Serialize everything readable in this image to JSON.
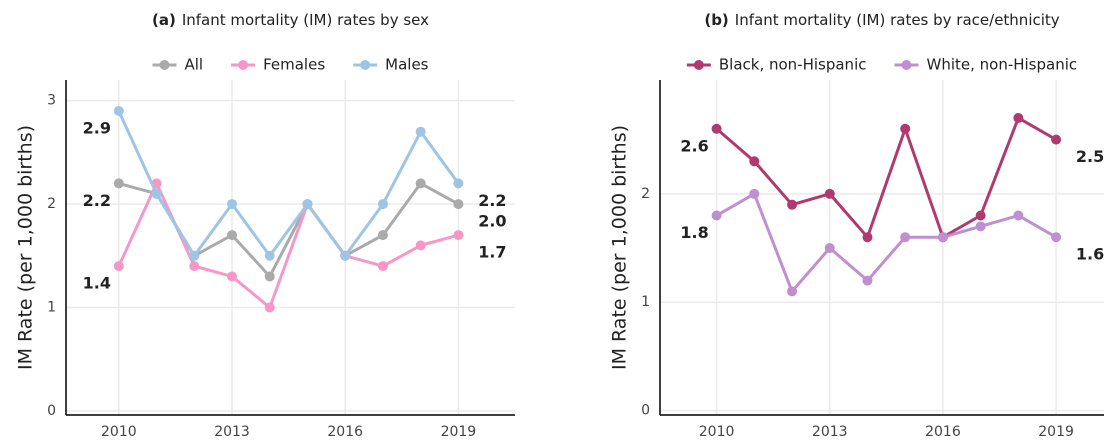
{
  "chart_data": [
    {
      "type": "line",
      "title_label": "(a)",
      "title": "Infant mortality (IM) rates by sex",
      "y_label": "IM Rate (per 1,000 births)",
      "x": [
        2010,
        2011,
        2012,
        2013,
        2014,
        2015,
        2016,
        2017,
        2018,
        2019
      ],
      "xlim": [
        2008.6,
        2020.5
      ],
      "xticks": [
        2010,
        2013,
        2016,
        2019
      ],
      "ylim": [
        -0.04,
        3.2
      ],
      "yticks": [
        0,
        1,
        2,
        3
      ],
      "grid": true,
      "series": [
        {
          "name": "All",
          "color": "#aaaaaa",
          "values": [
            2.2,
            2.1,
            1.5,
            1.7,
            1.3,
            2.0,
            1.5,
            1.7,
            2.2,
            2.0
          ],
          "value_labels": [
            "2.2",
            null,
            null,
            null,
            null,
            null,
            null,
            null,
            null,
            "2.0"
          ]
        },
        {
          "name": "Females",
          "color": "#f598c8",
          "values": [
            1.4,
            2.2,
            1.4,
            1.3,
            1.0,
            2.0,
            1.5,
            1.4,
            1.6,
            1.7
          ],
          "value_labels": [
            "1.4",
            null,
            null,
            null,
            null,
            null,
            null,
            null,
            null,
            "1.7"
          ]
        },
        {
          "name": "Males",
          "color": "#9ec5e3",
          "values": [
            2.9,
            2.1,
            1.5,
            2.0,
            1.5,
            2.0,
            1.5,
            2.0,
            2.7,
            2.2
          ],
          "value_labels": [
            "2.9",
            null,
            null,
            null,
            null,
            null,
            null,
            null,
            null,
            "2.2"
          ]
        }
      ]
    },
    {
      "type": "line",
      "title_label": "(b)",
      "title": "Infant mortality (IM) rates by race/ethnicity",
      "y_label": "IM Rate (per 1,000 births)",
      "x": [
        2010,
        2011,
        2012,
        2013,
        2014,
        2015,
        2016,
        2017,
        2018,
        2019
      ],
      "xlim": [
        2008.5,
        2020.27
      ],
      "xticks": [
        2010,
        2013,
        2016,
        2019
      ],
      "ylim": [
        -0.04,
        3.05
      ],
      "yticks": [
        0,
        1,
        2
      ],
      "grid": true,
      "series": [
        {
          "name": "Black, non-Hispanic",
          "color": "#b03a6e",
          "values": [
            2.6,
            2.3,
            1.9,
            2.0,
            1.6,
            2.6,
            1.6,
            1.8,
            2.7,
            2.5
          ],
          "value_labels": [
            "2.6",
            null,
            null,
            null,
            null,
            null,
            null,
            null,
            null,
            "2.5"
          ]
        },
        {
          "name": "White, non-Hispanic",
          "color": "#c08fd0",
          "values": [
            1.8,
            2.0,
            1.1,
            1.5,
            1.2,
            1.6,
            1.6,
            1.7,
            1.8,
            1.6
          ],
          "value_labels": [
            "1.8",
            null,
            null,
            null,
            null,
            null,
            null,
            null,
            null,
            "1.6"
          ]
        }
      ]
    }
  ]
}
